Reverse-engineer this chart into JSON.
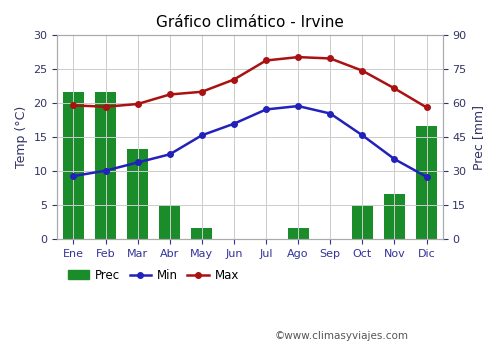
{
  "title": "Gráfico climático - Irvine",
  "months": [
    "Ene",
    "Feb",
    "Mar",
    "Abr",
    "May",
    "Jun",
    "Jul",
    "Ago",
    "Sep",
    "Oct",
    "Nov",
    "Dic"
  ],
  "prec": [
    65,
    65,
    40,
    15,
    5,
    0,
    0,
    5,
    0,
    15,
    20,
    50
  ],
  "temp_min": [
    9.3,
    10.1,
    11.3,
    12.5,
    15.3,
    17.0,
    19.1,
    19.6,
    18.5,
    15.3,
    11.8,
    9.2
  ],
  "temp_max": [
    19.7,
    19.5,
    19.9,
    21.3,
    21.7,
    23.5,
    26.3,
    26.8,
    26.6,
    24.8,
    22.2,
    19.4
  ],
  "temp_ylim": [
    0,
    30
  ],
  "temp_yticks": [
    0,
    5,
    10,
    15,
    20,
    25,
    30
  ],
  "prec_ylim": [
    0,
    90
  ],
  "prec_yticks": [
    0,
    15,
    30,
    45,
    60,
    75,
    90
  ],
  "temp_ylabel": "Temp (°C)",
  "prec_ylabel": "Prec [mm]",
  "bar_color": "#1a8c2a",
  "min_color": "#2222bb",
  "max_color": "#aa1111",
  "watermark": "©www.climasyviajes.com",
  "bg_color": "#ffffff",
  "grid_color": "#cccccc",
  "ylabel_color_temp": "#2222bb",
  "ylabel_color_prec": "#2222bb"
}
